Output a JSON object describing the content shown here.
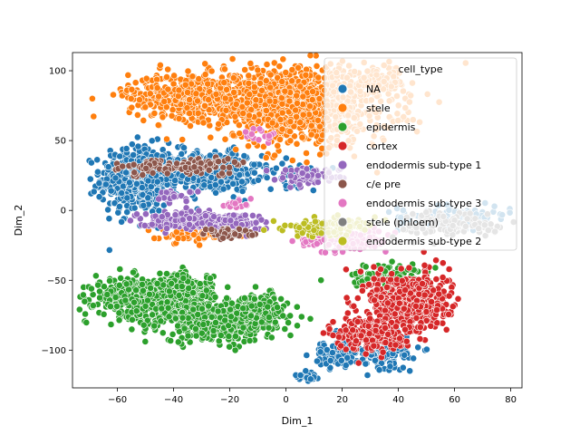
{
  "chart_data": {
    "type": "scatter",
    "title": "",
    "xlabel": "Dim_1",
    "ylabel": "Dim_2",
    "xlim": [
      -76,
      84
    ],
    "ylim": [
      -127,
      113
    ],
    "x_ticks": [
      -60,
      -40,
      -20,
      0,
      20,
      40,
      60,
      80
    ],
    "y_ticks": [
      -100,
      -50,
      0,
      50,
      100
    ],
    "grid": false,
    "legend": {
      "title": "cell_type",
      "placement": "top-right",
      "entries": [
        "NA",
        "stele",
        "epidermis",
        "cortex",
        "endodermis sub-type 1",
        "c/e pre",
        "endodermis sub-type 3",
        "stele (phloem)",
        "endodermis sub-type 2"
      ]
    },
    "point_size_note": "markers are circles with white edge",
    "series": [
      {
        "name": "NA",
        "color": "#1f77b4",
        "clusters": [
          {
            "cx": -52,
            "cy": 22,
            "sx": 7,
            "sy": 12,
            "n": 520
          },
          {
            "cx": -27,
            "cy": 28,
            "sx": 9,
            "sy": 7,
            "n": 380
          },
          {
            "cx": 34,
            "cy": -98,
            "sx": 7,
            "sy": 9,
            "n": 180
          },
          {
            "cx": 18,
            "cy": -103,
            "sx": 4,
            "sy": 5,
            "n": 70
          },
          {
            "cx": 8,
            "cy": -118,
            "sx": 2,
            "sy": 2,
            "n": 20
          },
          {
            "cx": 60,
            "cy": -5,
            "sx": 10,
            "sy": 4,
            "n": 120
          },
          {
            "cx": 5,
            "cy": 25,
            "sx": 6,
            "sy": 4,
            "n": 40
          }
        ]
      },
      {
        "name": "stele",
        "color": "#ff7f0e",
        "clusters": [
          {
            "cx": -30,
            "cy": 82,
            "sx": 13,
            "sy": 8,
            "n": 620
          },
          {
            "cx": 6,
            "cy": 75,
            "sx": 16,
            "sy": 14,
            "n": 950
          },
          {
            "cx": 33,
            "cy": 92,
            "sx": 5,
            "sy": 4,
            "n": 90
          },
          {
            "cx": -33,
            "cy": -17,
            "sx": 6,
            "sy": 3,
            "n": 60
          },
          {
            "cx": -18,
            "cy": -17,
            "sx": 4,
            "sy": 2,
            "n": 20
          }
        ]
      },
      {
        "name": "epidermis",
        "color": "#2ca02c",
        "clusters": [
          {
            "cx": -52,
            "cy": -63,
            "sx": 8,
            "sy": 7,
            "n": 480
          },
          {
            "cx": -36,
            "cy": -57,
            "sx": 5,
            "sy": 6,
            "n": 260
          },
          {
            "cx": -24,
            "cy": -80,
            "sx": 10,
            "sy": 7,
            "n": 420
          },
          {
            "cx": -10,
            "cy": -70,
            "sx": 6,
            "sy": 5,
            "n": 180
          },
          {
            "cx": 36,
            "cy": -47,
            "sx": 8,
            "sy": 4,
            "n": 90
          }
        ]
      },
      {
        "name": "cortex",
        "color": "#d62728",
        "clusters": [
          {
            "cx": 44,
            "cy": -66,
            "sx": 7,
            "sy": 11,
            "n": 520
          },
          {
            "cx": 30,
            "cy": -88,
            "sx": 6,
            "sy": 6,
            "n": 220
          }
        ]
      },
      {
        "name": "endodermis sub-type 1",
        "color": "#9467bd",
        "clusters": [
          {
            "cx": -37,
            "cy": -7,
            "sx": 8,
            "sy": 3,
            "n": 180
          },
          {
            "cx": -20,
            "cy": -8,
            "sx": 6,
            "sy": 3,
            "n": 110
          },
          {
            "cx": 8,
            "cy": 25,
            "sx": 6,
            "sy": 3,
            "n": 60
          },
          {
            "cx": -40,
            "cy": 10,
            "sx": 4,
            "sy": 2,
            "n": 25
          }
        ]
      },
      {
        "name": "c/e pre",
        "color": "#8c564b",
        "clusters": [
          {
            "cx": -32,
            "cy": 32,
            "sx": 8,
            "sy": 3,
            "n": 90
          },
          {
            "cx": -20,
            "cy": -17,
            "sx": 5,
            "sy": 2,
            "n": 40
          },
          {
            "cx": -50,
            "cy": 30,
            "sx": 5,
            "sy": 3,
            "n": 30
          }
        ]
      },
      {
        "name": "endodermis sub-type 3",
        "color": "#e377c2",
        "clusters": [
          {
            "cx": 20,
            "cy": -22,
            "sx": 8,
            "sy": 4,
            "n": 120
          },
          {
            "cx": -18,
            "cy": 5,
            "sx": 3,
            "sy": 2,
            "n": 15
          },
          {
            "cx": -8,
            "cy": 55,
            "sx": 3,
            "sy": 3,
            "n": 15
          }
        ]
      },
      {
        "name": "stele (phloem)",
        "color": "#7f7f7f",
        "clusters": [
          {
            "cx": 60,
            "cy": -10,
            "sx": 10,
            "sy": 5,
            "n": 110
          }
        ]
      },
      {
        "name": "endodermis sub-type 2",
        "color": "#bcbd22",
        "clusters": [
          {
            "cx": 10,
            "cy": -13,
            "sx": 6,
            "sy": 3,
            "n": 90
          },
          {
            "cx": 25,
            "cy": -10,
            "sx": 4,
            "sy": 3,
            "n": 30
          }
        ]
      }
    ]
  }
}
